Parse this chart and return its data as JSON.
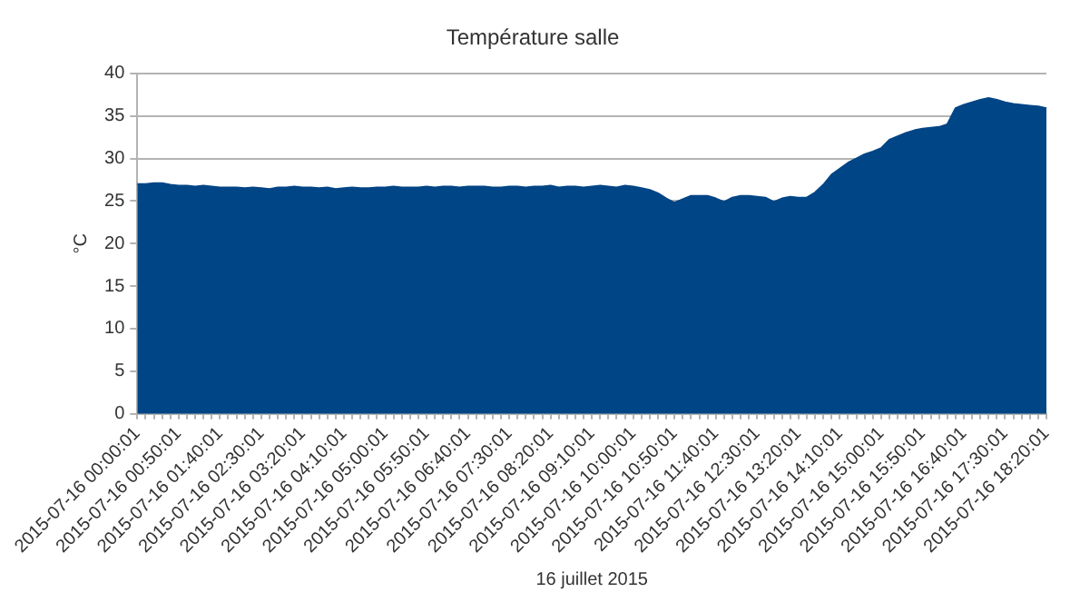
{
  "chart_data": {
    "type": "area",
    "title": "Température salle",
    "xlabel": "16 juillet 2015",
    "ylabel": "°C",
    "categories": [
      "2015-07-16 00:00:01",
      null,
      null,
      null,
      null,
      "2015-07-16 00:50:01",
      null,
      null,
      null,
      null,
      "2015-07-16 01:40:01",
      null,
      null,
      null,
      null,
      "2015-07-16 02:30:01",
      null,
      null,
      null,
      null,
      "2015-07-16 03:20:01",
      null,
      null,
      null,
      null,
      "2015-07-16 04:10:01",
      null,
      null,
      null,
      null,
      "2015-07-16 05:00:01",
      null,
      null,
      null,
      null,
      "2015-07-16 05:50:01",
      null,
      null,
      null,
      null,
      "2015-07-16 06:40:01",
      null,
      null,
      null,
      null,
      "2015-07-16 07:30:01",
      null,
      null,
      null,
      null,
      "2015-07-16 08:20:01",
      null,
      null,
      null,
      null,
      "2015-07-16 09:10:01",
      null,
      null,
      null,
      null,
      "2015-07-16 10:00:01",
      null,
      null,
      null,
      null,
      "2015-07-16 10:50:01",
      null,
      null,
      null,
      null,
      "2015-07-16 11:40:01",
      null,
      null,
      null,
      null,
      "2015-07-16 12:30:01",
      null,
      null,
      null,
      null,
      "2015-07-16 13:20:01",
      null,
      null,
      null,
      null,
      "2015-07-16 14:10:01",
      null,
      null,
      null,
      null,
      "2015-07-16 15:00:01",
      null,
      null,
      null,
      null,
      "2015-07-16 15:50:01",
      null,
      null,
      null,
      null,
      "2015-07-16 16:40:01",
      null,
      null,
      null,
      null,
      "2015-07-16 17:30:01",
      null,
      null,
      null,
      null,
      "2015-07-16 18:20:01"
    ],
    "series": [
      {
        "color": "#004586",
        "values": [
          27.0,
          27.0,
          27.1,
          27.1,
          26.9,
          26.8,
          26.8,
          26.7,
          26.8,
          26.7,
          26.6,
          26.6,
          26.6,
          26.5,
          26.6,
          26.5,
          26.4,
          26.6,
          26.6,
          26.7,
          26.6,
          26.6,
          26.5,
          26.6,
          26.4,
          26.5,
          26.6,
          26.5,
          26.5,
          26.6,
          26.6,
          26.7,
          26.6,
          26.6,
          26.6,
          26.7,
          26.6,
          26.7,
          26.7,
          26.6,
          26.7,
          26.7,
          26.7,
          26.6,
          26.6,
          26.7,
          26.7,
          26.6,
          26.7,
          26.7,
          26.8,
          26.6,
          26.7,
          26.7,
          26.6,
          26.7,
          26.8,
          26.7,
          26.6,
          26.8,
          26.7,
          26.5,
          26.3,
          25.9,
          25.3,
          24.8,
          25.2,
          25.6,
          25.6,
          25.6,
          25.3,
          24.9,
          25.4,
          25.6,
          25.6,
          25.5,
          25.4,
          24.9,
          25.3,
          25.5,
          25.4,
          25.4,
          26.0,
          26.9,
          28.1,
          28.8,
          29.5,
          30.0,
          30.5,
          30.8,
          31.2,
          32.2,
          32.6,
          33.0,
          33.3,
          33.5,
          33.6,
          33.7,
          34.0,
          35.9,
          36.3,
          36.6,
          36.9,
          37.1,
          36.9,
          36.6,
          36.4,
          36.3,
          36.2,
          36.1,
          35.9
        ]
      }
    ],
    "ylim": [
      0,
      40
    ],
    "yticks": [
      0,
      5,
      10,
      15,
      20,
      25,
      30,
      35,
      40
    ],
    "grid": "y"
  }
}
